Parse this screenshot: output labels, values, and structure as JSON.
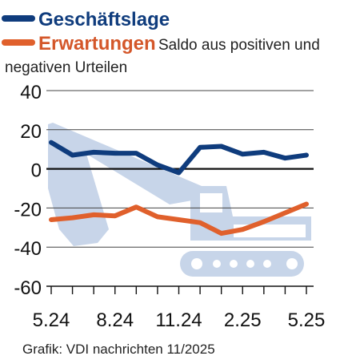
{
  "chart_data": {
    "type": "line",
    "legend_placement": "top-left",
    "legend_note": "Saldo aus positiven und negativen Urteilen",
    "x": [
      "5.24",
      "6.24",
      "7.24",
      "8.24",
      "9.24",
      "10.24",
      "11.24",
      "12.24",
      "1.25",
      "2.25",
      "3.25",
      "4.25",
      "5.25"
    ],
    "xtick_labels": [
      "5.24",
      "8.24",
      "11.24",
      "2.25",
      "5.25"
    ],
    "ylim": [
      -60,
      40
    ],
    "yticks": [
      -60,
      -40,
      -20,
      0,
      20,
      40
    ],
    "grid": "horizontal",
    "series": [
      {
        "name": "Geschäftslage",
        "color": "#0f3c7d",
        "values": [
          13.5,
          7,
          8.5,
          8,
          8,
          2,
          -2,
          11,
          11.5,
          7.5,
          8.5,
          5.5,
          7
        ]
      },
      {
        "name": "Erwartungen",
        "color": "#e0602c",
        "values": [
          -26,
          -25,
          -23.5,
          -24,
          -19.5,
          -24.5,
          -26,
          -27.5,
          -33,
          -31,
          -27,
          -22.5,
          -18
        ]
      }
    ],
    "source": "Grafik: VDI nachrichten 11/2025",
    "background_illustration": "excavator"
  }
}
